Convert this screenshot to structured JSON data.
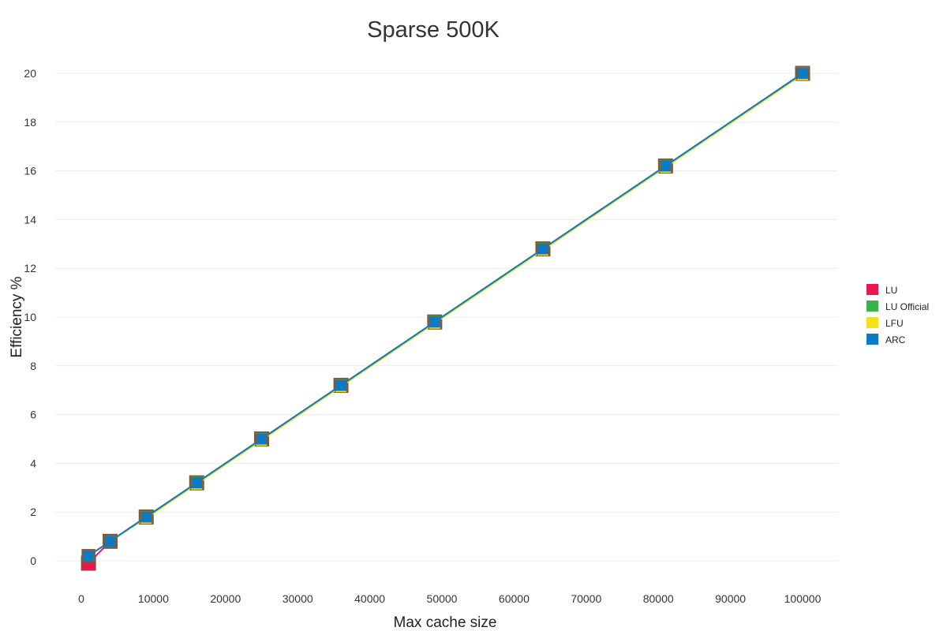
{
  "chart_data": {
    "type": "line",
    "title": "Sparse 500K",
    "xlabel": "Max cache size",
    "ylabel": "Efficiency %",
    "xlim": [
      0,
      100000
    ],
    "ylim": [
      0,
      20
    ],
    "xticks": [
      "0",
      "10000",
      "20000",
      "30000",
      "40000",
      "50000",
      "60000",
      "70000",
      "80000",
      "90000",
      "100000"
    ],
    "yticks": [
      "0",
      "2",
      "4",
      "6",
      "8",
      "10",
      "12",
      "14",
      "16",
      "18",
      "20"
    ],
    "grid": "horizontal",
    "legend_position": "right",
    "x": [
      1000,
      4000,
      9000,
      16000,
      25000,
      36000,
      49000,
      64000,
      81000,
      100000
    ],
    "series": [
      {
        "name": "LU",
        "color": "#e8174f",
        "values": [
          -0.1,
          0.8,
          1.8,
          3.2,
          5.0,
          7.2,
          9.8,
          12.8,
          16.2,
          20.0
        ]
      },
      {
        "name": "LU Official",
        "color": "#3ab34a",
        "values": [
          0.2,
          0.8,
          1.8,
          3.2,
          5.0,
          7.2,
          9.8,
          12.8,
          16.2,
          20.0
        ]
      },
      {
        "name": "LFU",
        "color": "#f5e21b",
        "values": [
          0.2,
          0.8,
          1.75,
          3.15,
          4.95,
          7.15,
          9.75,
          12.75,
          16.15,
          19.95
        ]
      },
      {
        "name": "ARC",
        "color": "#0a7bc4",
        "values": [
          0.2,
          0.8,
          1.8,
          3.2,
          5.0,
          7.2,
          9.8,
          12.8,
          16.2,
          20.0
        ]
      }
    ]
  }
}
